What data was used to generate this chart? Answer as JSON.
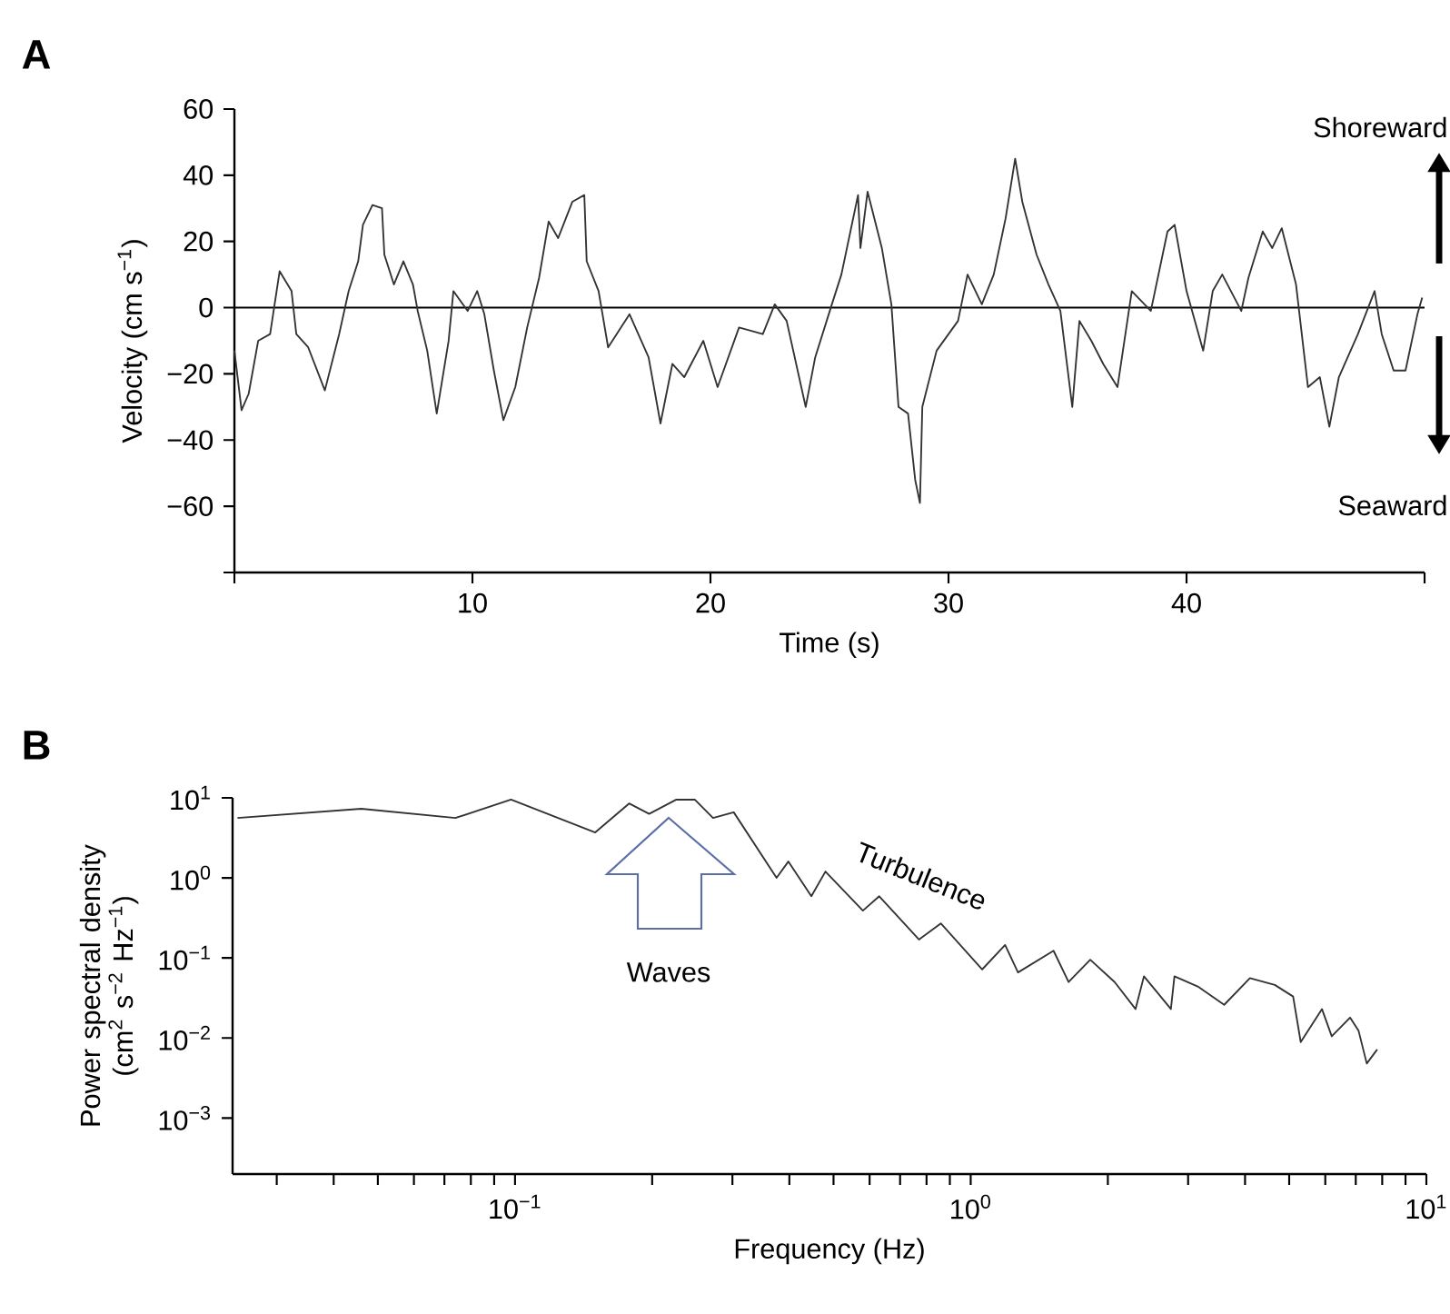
{
  "chart_data": [
    {
      "type": "line",
      "title": "A",
      "xlabel": "Time (s)",
      "ylabel": "Velocity (cm s$^{−1}$)",
      "x": [
        0,
        0.3,
        0.6,
        1.0,
        1.5,
        1.9,
        2.4,
        2.6,
        3.1,
        3.8,
        4.4,
        4.8,
        5.2,
        5.4,
        5.8,
        6.2,
        6.3,
        6.7,
        7.1,
        7.5,
        7.7,
        8.1,
        8.5,
        9.0,
        9.2,
        9.8,
        10.2,
        10.5,
        10.9,
        11.3,
        11.8,
        12.3,
        12.8,
        13.2,
        13.6,
        14.2,
        14.7,
        14.8,
        15.3,
        15.7,
        16.6,
        17.4,
        17.9,
        18.4,
        18.9,
        19.7,
        20.3,
        21.2,
        22.2,
        22.7,
        23.2,
        24.0,
        24.4,
        25.1,
        25.5,
        26.2,
        26.3,
        26.6,
        27.2,
        27.6,
        27.9,
        28.3,
        28.6,
        28.8,
        28.9,
        29.5,
        30.4,
        30.8,
        31.4,
        31.9,
        32.4,
        32.8,
        33.1,
        33.7,
        34.2,
        34.7,
        35.2,
        35.5,
        36.0,
        36.5,
        37.1,
        37.7,
        38.5,
        39.2,
        39.5,
        40.0,
        40.7,
        41.1,
        41.5,
        42.3,
        42.6,
        43.2,
        43.6,
        44.0,
        44.6,
        45.1,
        45.6,
        46.0,
        46.4,
        47.2,
        47.9,
        48.2,
        48.7,
        49.2,
        49.7,
        49.9
      ],
      "series": [
        {
          "color": "#333333",
          "values": [
            -13,
            -31,
            -26,
            -10,
            -8,
            11,
            5,
            -8,
            -12,
            -25,
            -8,
            5,
            14,
            25,
            31,
            30,
            16,
            7,
            14,
            7,
            -1,
            -13,
            -32,
            -10,
            5,
            -1,
            5,
            -2,
            -19,
            -34,
            -24,
            -6,
            9,
            26,
            21,
            32,
            34,
            14,
            5,
            -12,
            -2,
            -15,
            -35,
            -17,
            -21,
            -10,
            -24,
            -6,
            -8,
            1,
            -4,
            -30,
            -15,
            1,
            10,
            34,
            18,
            35,
            18,
            1,
            -30,
            -32,
            -52,
            -59,
            -30,
            -13,
            -4,
            10,
            1,
            10,
            27,
            45,
            32,
            16,
            7,
            -1,
            -30,
            -4,
            -10,
            -17,
            -24,
            5,
            -1,
            23,
            25,
            5,
            -13,
            5,
            10,
            -1,
            9,
            23,
            18,
            24,
            7,
            -24,
            -21,
            -36,
            -21,
            -8,
            5,
            -8,
            -19,
            -19,
            -2,
            3
          ]
        }
      ],
      "xlim": [
        0,
        50
      ],
      "ylim": [
        -80,
        60
      ],
      "xticks": [
        {
          "value": 0,
          "label": null
        },
        10,
        20,
        30,
        40,
        {
          "value": 50,
          "label": null
        }
      ],
      "yticks": [
        {
          "value": -80,
          "label": null
        },
        {
          "value": -60,
          "label": "−60"
        },
        {
          "value": -40,
          "label": "−40"
        },
        {
          "value": -20,
          "label": "−20"
        },
        0,
        20,
        40,
        60
      ],
      "ref_lines": [
        {
          "axis": "y",
          "value": 0
        }
      ],
      "annotations": [
        "Shoreward",
        "Seaward"
      ]
    },
    {
      "type": "line",
      "title": "B",
      "xlabel": "Frequency (Hz)",
      "ylabel": "Power spectral density (cm$^{2}$ s$^{−2}$ Hz$^{−1}$)",
      "log": "xy",
      "x": [
        0.0246,
        0.046,
        0.074,
        0.098,
        0.15,
        0.178,
        0.197,
        0.226,
        0.248,
        0.272,
        0.302,
        0.375,
        0.398,
        0.447,
        0.48,
        0.58,
        0.63,
        0.77,
        0.86,
        1.06,
        1.19,
        1.27,
        1.52,
        1.64,
        1.83,
        2.07,
        2.3,
        2.4,
        2.75,
        2.8,
        3.15,
        3.6,
        4.1,
        4.65,
        5.1,
        5.3,
        5.9,
        6.2,
        6.8,
        7.1,
        7.4,
        7.8
      ],
      "series": [
        {
          "color": "#333333",
          "values": [
            5.6,
            7.3,
            5.6,
            9.5,
            3.7,
            8.5,
            6.3,
            9.5,
            9.5,
            5.6,
            6.6,
            1.0,
            1.6,
            0.59,
            1.2,
            0.39,
            0.59,
            0.17,
            0.27,
            0.072,
            0.145,
            0.066,
            0.123,
            0.05,
            0.095,
            0.05,
            0.023,
            0.059,
            0.023,
            0.059,
            0.044,
            0.026,
            0.056,
            0.046,
            0.033,
            0.0089,
            0.023,
            0.0105,
            0.018,
            0.0123,
            0.0048,
            0.0072
          ]
        }
      ],
      "xlim": [
        0.024,
        10
      ],
      "ylim": [
        0.0002,
        10
      ],
      "xticks": [
        {
          "value": 0.03,
          "label": null
        },
        {
          "value": 0.04,
          "label": null
        },
        {
          "value": 0.05,
          "label": null
        },
        {
          "value": 0.06,
          "label": null
        },
        {
          "value": 0.07,
          "label": null
        },
        {
          "value": 0.08,
          "label": null
        },
        {
          "value": 0.09,
          "label": null
        },
        {
          "value": 0.1,
          "label": "10$^{−1}$"
        },
        {
          "value": 0.2,
          "label": null
        },
        {
          "value": 0.3,
          "label": null
        },
        {
          "value": 0.4,
          "label": null
        },
        {
          "value": 0.5,
          "label": null
        },
        {
          "value": 0.6,
          "label": null
        },
        {
          "value": 0.7,
          "label": null
        },
        {
          "value": 0.8,
          "label": null
        },
        {
          "value": 0.9,
          "label": null
        },
        {
          "value": 1,
          "label": "10$^{0}$"
        },
        {
          "value": 2,
          "label": null
        },
        {
          "value": 3,
          "label": null
        },
        {
          "value": 4,
          "label": null
        },
        {
          "value": 5,
          "label": null
        },
        {
          "value": 6,
          "label": null
        },
        {
          "value": 7,
          "label": null
        },
        {
          "value": 8,
          "label": null
        },
        {
          "value": 9,
          "label": null
        },
        {
          "value": 10,
          "label": "10$^{1}$"
        }
      ],
      "yticks": [
        {
          "value": 0.001,
          "label": "10$^{−3}$"
        },
        {
          "value": 0.01,
          "label": "10$^{−2}$"
        },
        {
          "value": 0.1,
          "label": "10$^{−1}$"
        },
        {
          "value": 1,
          "label": "10$^{0}$"
        },
        {
          "value": 10,
          "label": "10$^{1}$"
        }
      ],
      "annotations": [
        "Waves",
        "Turbulence"
      ]
    }
  ]
}
